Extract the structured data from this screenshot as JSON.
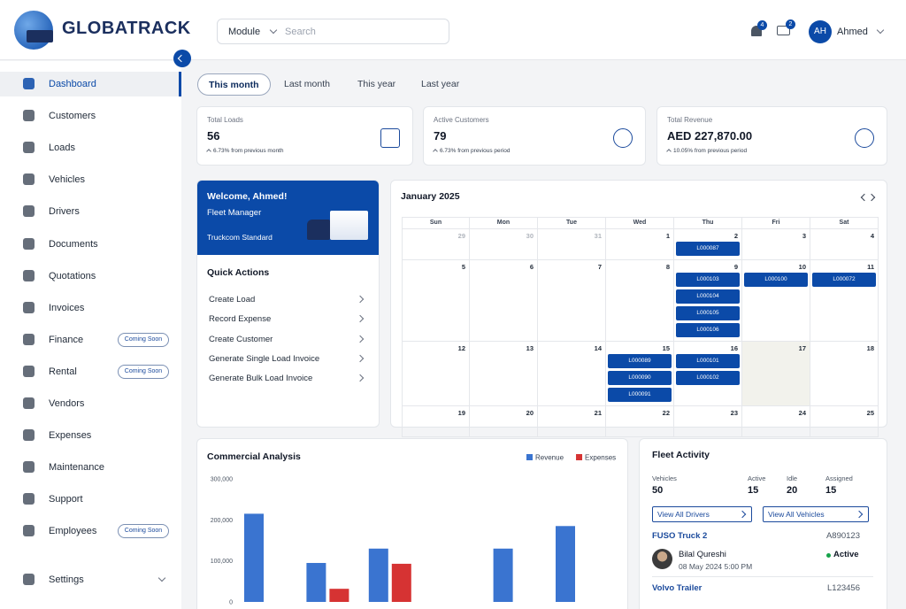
{
  "header": {
    "brand": "GLOBATRACK",
    "module": "Module",
    "search_placeholder": "Search",
    "notification_count": 4,
    "message_count": 2,
    "user_initials": "AH",
    "user_name": "Ahmed"
  },
  "sidebar": {
    "items": [
      {
        "label": "Dashboard",
        "active": true
      },
      {
        "label": "Customers"
      },
      {
        "label": "Loads"
      },
      {
        "label": "Vehicles"
      },
      {
        "label": "Drivers"
      },
      {
        "label": "Documents"
      },
      {
        "label": "Quotations"
      },
      {
        "label": "Invoices"
      },
      {
        "label": "Finance",
        "badge": "Coming Soon"
      },
      {
        "label": "Rental",
        "badge": "Coming Soon"
      },
      {
        "label": "Vendors"
      },
      {
        "label": "Expenses"
      },
      {
        "label": "Maintenance"
      },
      {
        "label": "Support"
      },
      {
        "label": "Employees",
        "badge": "Coming Soon"
      }
    ],
    "settings": "Settings"
  },
  "tabs": {
    "items": [
      "This month",
      "Last month",
      "This year",
      "Last year"
    ],
    "active": 0
  },
  "stats": [
    {
      "label": "Total Loads",
      "value": 56,
      "change": "6.73% from previous month"
    },
    {
      "label": "Active Customers",
      "value": 79,
      "change": "6.73% from previous period"
    },
    {
      "label": "Total Revenue",
      "value": "AED 227,870.00",
      "change": "10.05% from previous period"
    }
  ],
  "welcome": {
    "title": "Welcome, Ahmed!",
    "role": "Fleet Manager",
    "plan": "Truckcom Standard"
  },
  "quick_actions": {
    "title": "Quick Actions",
    "items": [
      "Create Load",
      "Record Expense",
      "Create Customer",
      "Generate Single Load Invoice",
      "Generate Bulk Load Invoice"
    ]
  },
  "calendar": {
    "title": "January 2025",
    "weekdays": [
      "Sun",
      "Mon",
      "Tue",
      "Wed",
      "Thu",
      "Fri",
      "Sat"
    ],
    "weeks": [
      [
        {
          "day": 29,
          "other_month": true
        },
        {
          "day": 30,
          "other_month": true
        },
        {
          "day": 31,
          "other_month": true
        },
        {
          "day": 1
        },
        {
          "day": 2,
          "loads": [
            "L000087"
          ]
        },
        {
          "day": 3
        },
        {
          "day": 4
        }
      ],
      [
        {
          "day": 5
        },
        {
          "day": 6
        },
        {
          "day": 7
        },
        {
          "day": 8
        },
        {
          "day": 9,
          "loads": [
            "L000103",
            "L000104",
            "L000105",
            "L000106"
          ]
        },
        {
          "day": 10,
          "loads": [
            "L000100"
          ]
        },
        {
          "day": 11,
          "loads": [
            "L000072"
          ]
        }
      ],
      [
        {
          "day": 12
        },
        {
          "day": 13
        },
        {
          "day": 14
        },
        {
          "day": 15,
          "loads": [
            "L000089",
            "L000090",
            "L000091"
          ]
        },
        {
          "day": 16,
          "loads": [
            "L000101",
            "L000102"
          ]
        },
        {
          "day": 17,
          "today": true
        },
        {
          "day": 18
        }
      ],
      [
        {
          "day": 19
        },
        {
          "day": 20
        },
        {
          "day": 21
        },
        {
          "day": 22
        },
        {
          "day": 23
        },
        {
          "day": 24
        },
        {
          "day": 25
        }
      ]
    ]
  },
  "chart_data": {
    "type": "bar",
    "title": "Commercial Analysis",
    "categories": [
      null,
      null,
      null,
      null,
      null,
      null
    ],
    "series": [
      {
        "name": "Revenue",
        "color": "#3a74d0",
        "values": [
          215000,
          95000,
          130000,
          0,
          130000,
          185000
        ]
      },
      {
        "name": "Expenses",
        "color": "#d63333",
        "values": [
          0,
          32000,
          93000,
          0,
          0,
          0
        ]
      }
    ],
    "ylim": [
      0,
      300000
    ],
    "yticks": [
      0,
      {
        "value": 100000,
        "label": "100,000"
      },
      {
        "value": 200000,
        "label": "200,000"
      },
      {
        "value": 300000,
        "label": "300,000"
      }
    ],
    "grid": false,
    "legend": "top-right"
  },
  "fleet_activity": {
    "title": "Fleet Activity",
    "stats": [
      {
        "label": "Vehicles",
        "value": 50
      },
      {
        "label": "Active",
        "value": 15
      },
      {
        "label": "Idle",
        "value": 20
      },
      {
        "label": "Assigned",
        "value": 15
      }
    ],
    "buttons": [
      "View All Drivers",
      "View All Vehicles"
    ],
    "vehicles": [
      {
        "name": "FUSO Truck 2",
        "plate": "A890123",
        "driver": "Bilal Qureshi",
        "time": "08 May 2024 5:00 PM",
        "status": "Active"
      },
      {
        "name": "Volvo Trailer",
        "plate": "L123456"
      }
    ]
  }
}
